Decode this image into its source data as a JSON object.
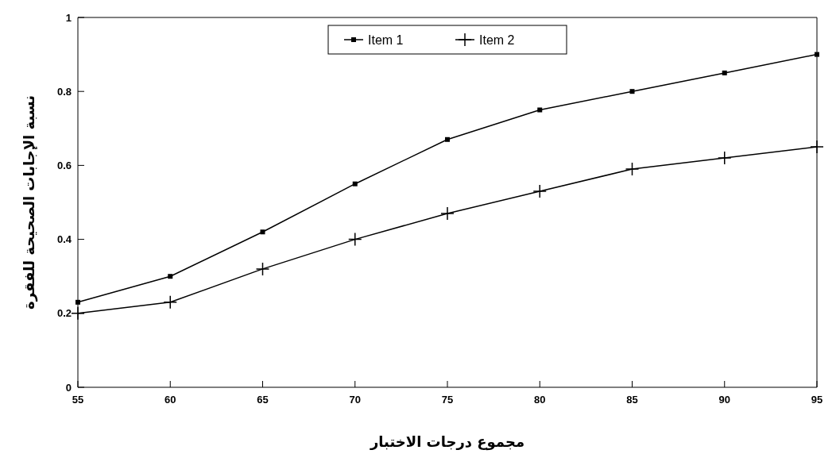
{
  "chart_data": {
    "type": "line",
    "xlabel": "مجموع درجات الاختبار",
    "ylabel": "نسبة الإجابات الصحيحة للفقرة",
    "x": [
      55,
      60,
      65,
      70,
      75,
      80,
      85,
      90,
      95
    ],
    "series": [
      {
        "name": "Item 1",
        "color": "#000000",
        "marker": "square",
        "values": [
          0.23,
          0.3,
          0.42,
          0.55,
          0.67,
          0.75,
          0.8,
          0.85,
          0.9
        ]
      },
      {
        "name": "Item 2",
        "color": "#000000",
        "marker": "cross",
        "values": [
          0.2,
          0.23,
          0.32,
          0.4,
          0.47,
          0.53,
          0.59,
          0.62,
          0.65
        ]
      }
    ],
    "xlim": [
      55,
      95
    ],
    "xticks": [
      55,
      60,
      65,
      70,
      75,
      80,
      85,
      90,
      95
    ],
    "ylim": [
      0,
      1
    ],
    "yticks": [
      0,
      0.2,
      0.4,
      0.6,
      0.8,
      1
    ],
    "legend": "top",
    "grid": false
  }
}
